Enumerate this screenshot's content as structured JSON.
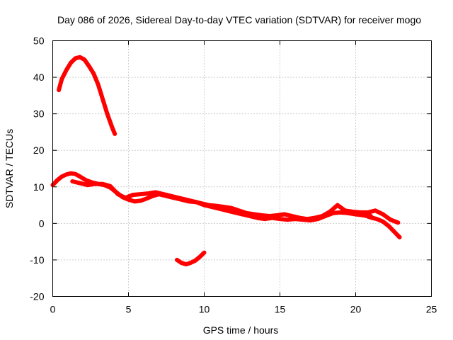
{
  "chart_data": {
    "type": "line",
    "title": "Day 086 of 2026, Sidereal Day-to-day VTEC variation (SDTVAR) for receiver mogo",
    "xlabel": "GPS time / hours",
    "ylabel": "SDTVAR / TECUs",
    "xlim": [
      0,
      25
    ],
    "ylim": [
      -20,
      50
    ],
    "xticks": [
      0,
      5,
      10,
      15,
      20,
      25
    ],
    "yticks": [
      -20,
      -10,
      0,
      10,
      20,
      30,
      40,
      50
    ],
    "xtick_labels": [
      "0",
      "5",
      "10",
      "15",
      "20",
      "25"
    ],
    "ytick_labels": [
      "-20",
      "-10",
      "0",
      "10",
      "20",
      "30",
      "40",
      "50"
    ],
    "grid": true,
    "legend": "none",
    "series_color": "#ff0000",
    "series": [
      {
        "name": "arc-peak",
        "x": [
          0.4,
          0.6,
          0.9,
          1.2,
          1.5,
          1.8,
          2.1,
          2.4,
          2.7,
          3.0,
          3.3,
          3.6,
          3.9,
          4.1
        ],
        "y": [
          36.5,
          39.5,
          42.0,
          44.0,
          45.2,
          45.5,
          44.8,
          43.0,
          41.0,
          38.0,
          34.0,
          30.0,
          26.5,
          24.5
        ]
      },
      {
        "name": "arc-main",
        "x": [
          0.0,
          0.3,
          0.6,
          0.9,
          1.2,
          1.5,
          1.8,
          2.2,
          2.6,
          3.0,
          3.4,
          3.8,
          4.2,
          4.6,
          5.0,
          5.4,
          5.8,
          6.2,
          6.6,
          7.0,
          7.5,
          8.0,
          8.5,
          9.0,
          9.5,
          10.0,
          10.5,
          11.0,
          11.5,
          12.0,
          12.5,
          13.0,
          13.5,
          14.0,
          14.5,
          15.0,
          15.5,
          16.0,
          16.5,
          17.0,
          17.5,
          18.0,
          18.5,
          19.0,
          19.5,
          20.0,
          20.5,
          21.0
        ],
        "y": [
          10.5,
          11.8,
          12.8,
          13.4,
          13.7,
          13.5,
          12.8,
          11.8,
          11.2,
          10.8,
          10.5,
          9.8,
          8.5,
          7.2,
          6.5,
          6.0,
          6.2,
          6.8,
          7.5,
          8.0,
          7.5,
          7.0,
          6.5,
          6.0,
          5.8,
          5.0,
          4.5,
          4.0,
          3.5,
          3.0,
          2.5,
          2.0,
          1.5,
          1.2,
          1.5,
          1.2,
          1.0,
          1.2,
          1.0,
          0.8,
          1.2,
          2.0,
          2.8,
          3.0,
          2.8,
          2.5,
          2.2,
          2.0
        ]
      },
      {
        "name": "arc-secondary",
        "x": [
          1.3,
          1.8,
          2.3,
          2.8,
          3.3,
          3.8,
          4.3,
          4.8,
          5.3,
          5.8,
          6.3,
          6.8,
          7.3,
          7.8,
          8.3,
          8.8,
          9.3,
          9.8,
          10.3,
          10.8,
          11.3,
          11.8,
          12.3,
          12.8,
          13.3,
          13.8,
          14.3,
          14.8,
          15.3,
          15.8,
          16.3,
          16.8,
          17.3,
          17.8,
          18.3,
          18.8,
          19.3,
          19.8,
          20.3,
          20.8,
          21.3,
          21.8,
          22.3,
          22.8
        ],
        "y": [
          11.5,
          11.0,
          10.5,
          10.8,
          10.8,
          10.2,
          8.0,
          7.0,
          7.8,
          8.0,
          8.2,
          8.5,
          8.0,
          7.5,
          7.0,
          6.5,
          6.0,
          5.5,
          5.0,
          4.8,
          4.5,
          4.2,
          3.5,
          2.8,
          2.5,
          2.2,
          2.0,
          2.2,
          2.5,
          2.0,
          1.5,
          1.2,
          1.5,
          2.0,
          3.2,
          5.0,
          3.5,
          3.2,
          3.0,
          3.0,
          3.5,
          2.5,
          1.0,
          0.2
        ]
      },
      {
        "name": "arc-late",
        "x": [
          20.2,
          20.6,
          21.0,
          21.4,
          21.8,
          22.2,
          22.6,
          22.9
        ],
        "y": [
          3.0,
          2.2,
          1.6,
          1.2,
          0.5,
          -0.8,
          -2.5,
          -3.8
        ]
      },
      {
        "name": "arc-negative",
        "x": [
          8.2,
          8.5,
          8.8,
          9.1,
          9.4,
          9.7,
          10.0
        ],
        "y": [
          -10.0,
          -10.8,
          -11.2,
          -10.8,
          -10.2,
          -9.2,
          -8.0
        ]
      }
    ]
  }
}
